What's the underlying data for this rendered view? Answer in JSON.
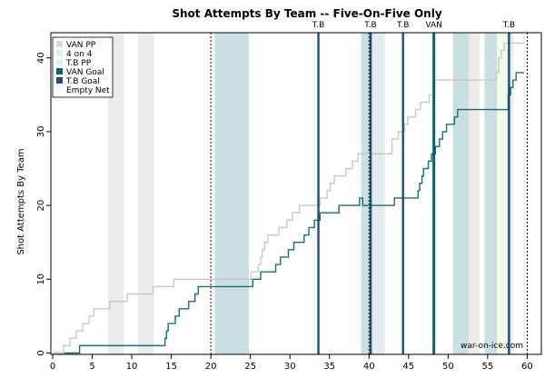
{
  "chart_data": {
    "type": "line",
    "title": "Shot Attempts By Team -- Five-On-Five Only",
    "ylabel": "Shot Attempts By Team",
    "xlabel": "",
    "xlim": [
      0,
      60
    ],
    "ylim": [
      0,
      42
    ],
    "x_ticks": [
      0,
      5,
      10,
      15,
      20,
      25,
      30,
      35,
      40,
      45,
      50,
      55,
      60
    ],
    "y_ticks": [
      0,
      10,
      20,
      30,
      40
    ],
    "period_breaks": [
      20,
      40,
      60
    ],
    "legend": [
      "VAN PP",
      "4 on 4",
      "T.B PP",
      "VAN Goal",
      "T.B Goal",
      "Empty Net"
    ],
    "legend_position": "top-left",
    "credit": "war-on-ice.com",
    "colors": {
      "van_pp": "#c9dfe2",
      "four_on_four": "#e5ecf0",
      "tb_pp": "#ebebeb",
      "van_goal": "#006666",
      "tb_goal": "#1f4e79",
      "empty_net": "#f2fce6",
      "van_line": "#1a6e73",
      "tb_line": "#c8c8c8"
    },
    "shaded_regions": [
      {
        "kind": "tb_pp",
        "start": 7.0,
        "end": 9.0
      },
      {
        "kind": "tb_pp",
        "start": 10.8,
        "end": 12.8
      },
      {
        "kind": "van_pp",
        "start": 20.5,
        "end": 24.8
      },
      {
        "kind": "van_pp",
        "start": 39.0,
        "end": 40.5
      },
      {
        "kind": "four_on_four",
        "start": 40.5,
        "end": 42.0
      },
      {
        "kind": "van_pp",
        "start": 50.6,
        "end": 52.6
      },
      {
        "kind": "tb_pp",
        "start": 52.6,
        "end": 54.0
      },
      {
        "kind": "van_pp",
        "start": 54.6,
        "end": 56.2
      },
      {
        "kind": "empty_net",
        "start": 56.2,
        "end": 57.4
      },
      {
        "kind": "four_on_four",
        "start": 57.4,
        "end": 58.2
      }
    ],
    "goals": [
      {
        "team": "T.B",
        "time": 33.6,
        "label": "T.B"
      },
      {
        "team": "T.B",
        "time": 40.2,
        "label": "T.B"
      },
      {
        "team": "T.B",
        "time": 44.3,
        "label": "T.B"
      },
      {
        "team": "VAN",
        "time": 48.2,
        "label": "VAN"
      },
      {
        "team": "T.B",
        "time": 57.7,
        "label": "T.B"
      }
    ],
    "series": [
      {
        "team": "VAN",
        "points": [
          [
            0,
            0
          ],
          [
            3.4,
            1
          ],
          [
            14.2,
            2
          ],
          [
            14.4,
            3
          ],
          [
            14.6,
            4
          ],
          [
            15.5,
            5
          ],
          [
            16.0,
            6
          ],
          [
            17.2,
            7
          ],
          [
            18.0,
            8
          ],
          [
            18.4,
            9
          ],
          [
            25.3,
            10
          ],
          [
            26.3,
            11
          ],
          [
            28.2,
            12
          ],
          [
            28.8,
            13
          ],
          [
            29.8,
            14
          ],
          [
            30.5,
            15
          ],
          [
            31.8,
            16
          ],
          [
            32.4,
            17
          ],
          [
            33.1,
            18
          ],
          [
            33.8,
            19
          ],
          [
            36.2,
            20
          ],
          [
            38.8,
            21
          ],
          [
            39.2,
            20
          ],
          [
            43.2,
            21
          ],
          [
            46.2,
            22
          ],
          [
            46.4,
            23
          ],
          [
            46.7,
            24
          ],
          [
            46.9,
            25
          ],
          [
            47.5,
            26
          ],
          [
            47.9,
            27
          ],
          [
            48.4,
            28
          ],
          [
            48.9,
            29
          ],
          [
            49.3,
            30
          ],
          [
            49.8,
            31
          ],
          [
            50.8,
            32
          ],
          [
            51.2,
            33
          ],
          [
            54.3,
            33
          ],
          [
            57.6,
            35
          ],
          [
            57.9,
            36
          ],
          [
            58.2,
            37
          ],
          [
            58.6,
            38
          ],
          [
            59.6,
            38
          ]
        ]
      },
      {
        "team": "T.B",
        "points": [
          [
            0,
            0
          ],
          [
            1.4,
            1
          ],
          [
            2.2,
            2
          ],
          [
            3.0,
            3
          ],
          [
            3.8,
            4
          ],
          [
            4.6,
            5
          ],
          [
            5.2,
            6
          ],
          [
            7.2,
            7
          ],
          [
            9.4,
            8
          ],
          [
            12.7,
            9
          ],
          [
            15.3,
            10
          ],
          [
            25.1,
            11
          ],
          [
            26.0,
            12
          ],
          [
            26.3,
            13
          ],
          [
            26.5,
            14
          ],
          [
            26.8,
            15
          ],
          [
            27.2,
            16
          ],
          [
            28.6,
            17
          ],
          [
            29.6,
            18
          ],
          [
            30.3,
            19
          ],
          [
            31.2,
            20
          ],
          [
            33.8,
            21
          ],
          [
            34.7,
            22
          ],
          [
            35.1,
            23
          ],
          [
            35.6,
            24
          ],
          [
            37.1,
            25
          ],
          [
            37.9,
            26
          ],
          [
            38.6,
            27
          ],
          [
            42.6,
            27
          ],
          [
            42.9,
            29
          ],
          [
            43.7,
            30
          ],
          [
            44.5,
            31
          ],
          [
            44.9,
            32
          ],
          [
            45.9,
            33
          ],
          [
            46.5,
            34
          ],
          [
            47.6,
            35
          ],
          [
            48.3,
            37
          ],
          [
            55.6,
            37
          ],
          [
            56.1,
            38
          ],
          [
            56.4,
            40
          ],
          [
            56.7,
            41
          ],
          [
            57.1,
            42
          ],
          [
            59.6,
            42
          ]
        ]
      }
    ]
  }
}
